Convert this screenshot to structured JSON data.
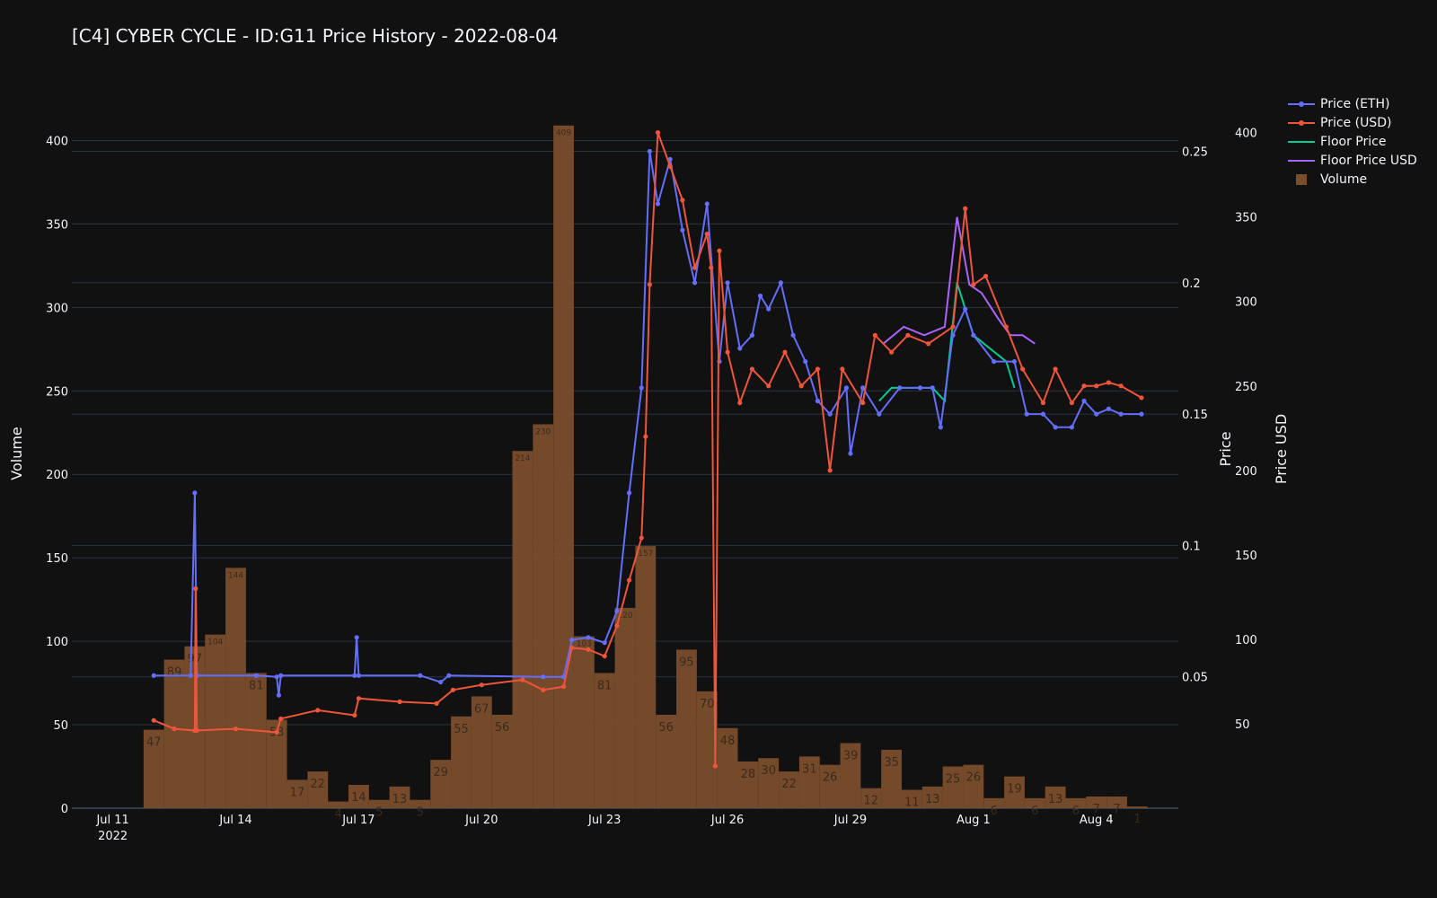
{
  "chart_data": {
    "type": "bar+line",
    "title": "[C4] CYBER CYCLE - ID:G11 Price History - 2022-08-04",
    "axes": {
      "y_left": {
        "label": "Volume",
        "range": [
          0,
          425
        ],
        "ticks": [
          0,
          50,
          100,
          150,
          200,
          250,
          300,
          350,
          400
        ]
      },
      "y_right_price": {
        "label": "Price",
        "range": [
          0,
          0.27
        ],
        "ticks": [
          0.05,
          0.1,
          0.15,
          0.2,
          0.25
        ]
      },
      "y_right_usd": {
        "label": "Price USD",
        "range": [
          0,
          420
        ],
        "ticks": [
          50,
          100,
          150,
          200,
          250,
          300,
          350,
          400
        ]
      },
      "x": {
        "type": "date",
        "range": [
          "2022-07-10",
          "2022-08-06"
        ],
        "tick_labels": [
          "Jul 11\n2022",
          "Jul 14",
          "Jul 17",
          "Jul 20",
          "Jul 23",
          "Jul 26",
          "Jul 29",
          "Aug 1",
          "Aug 4"
        ]
      }
    },
    "grid": true,
    "legend_placement": "top-right",
    "colors": {
      "eth": "#636efa",
      "usd": "#ef553b",
      "floor": "#00cc96",
      "floor_usd": "#ab63fa",
      "volume": "#7a4e2d"
    },
    "legend": [
      "Price (ETH)",
      "Price (USD)",
      "Floor Price",
      "Floor Price USD",
      "Volume"
    ],
    "volume": [
      {
        "x": "2022-07-12",
        "v": 47
      },
      {
        "x": "2022-07-12.5",
        "v": 89
      },
      {
        "x": "2022-07-13",
        "v": 97
      },
      {
        "x": "2022-07-13.5",
        "v": 104
      },
      {
        "x": "2022-07-14",
        "v": 144
      },
      {
        "x": "2022-07-14.5",
        "v": 81
      },
      {
        "x": "2022-07-15",
        "v": 53
      },
      {
        "x": "2022-07-15.5",
        "v": 17
      },
      {
        "x": "2022-07-16",
        "v": 22
      },
      {
        "x": "2022-07-16.5",
        "v": 4
      },
      {
        "x": "2022-07-17",
        "v": 14
      },
      {
        "x": "2022-07-17.5",
        "v": 5
      },
      {
        "x": "2022-07-18",
        "v": 13
      },
      {
        "x": "2022-07-18.5",
        "v": 5
      },
      {
        "x": "2022-07-19",
        "v": 29
      },
      {
        "x": "2022-07-19.5",
        "v": 55
      },
      {
        "x": "2022-07-20",
        "v": 67
      },
      {
        "x": "2022-07-20.5",
        "v": 56
      },
      {
        "x": "2022-07-21",
        "v": 214
      },
      {
        "x": "2022-07-21.5",
        "v": 230
      },
      {
        "x": "2022-07-22",
        "v": 409
      },
      {
        "x": "2022-07-22.5",
        "v": 103
      },
      {
        "x": "2022-07-23",
        "v": 81
      },
      {
        "x": "2022-07-23.5",
        "v": 120
      },
      {
        "x": "2022-07-24",
        "v": 157
      },
      {
        "x": "2022-07-24.5",
        "v": 56
      },
      {
        "x": "2022-07-25",
        "v": 95
      },
      {
        "x": "2022-07-25.5",
        "v": 70
      },
      {
        "x": "2022-07-26",
        "v": 48
      },
      {
        "x": "2022-07-26.5",
        "v": 28
      },
      {
        "x": "2022-07-27",
        "v": 30
      },
      {
        "x": "2022-07-27.5",
        "v": 22
      },
      {
        "x": "2022-07-28",
        "v": 31
      },
      {
        "x": "2022-07-28.5",
        "v": 26
      },
      {
        "x": "2022-07-29",
        "v": 39
      },
      {
        "x": "2022-07-29.5",
        "v": 12
      },
      {
        "x": "2022-07-30",
        "v": 35
      },
      {
        "x": "2022-07-30.5",
        "v": 11
      },
      {
        "x": "2022-07-31",
        "v": 13
      },
      {
        "x": "2022-07-31.5",
        "v": 25
      },
      {
        "x": "2022-08-01",
        "v": 26
      },
      {
        "x": "2022-08-01.5",
        "v": 6
      },
      {
        "x": "2022-08-02",
        "v": 19
      },
      {
        "x": "2022-08-02.5",
        "v": 6
      },
      {
        "x": "2022-08-03",
        "v": 13
      },
      {
        "x": "2022-08-03.5",
        "v": 6
      },
      {
        "x": "2022-08-04",
        "v": 7
      },
      {
        "x": "2022-08-04.5",
        "v": 7
      },
      {
        "x": "2022-08-05",
        "v": 1
      }
    ],
    "price_eth": [
      [
        "2022-07-12",
        0.0505
      ],
      [
        "2022-07-12.9",
        0.0505
      ],
      [
        "2022-07-13.0",
        0.12
      ],
      [
        "2022-07-13.05",
        0.0505
      ],
      [
        "2022-07-14.5",
        0.0505
      ],
      [
        "2022-07-15.0",
        0.05
      ],
      [
        "2022-07-15.05",
        0.043
      ],
      [
        "2022-07-15.1",
        0.0505
      ],
      [
        "2022-07-16.9",
        0.0505
      ],
      [
        "2022-07-16.95",
        0.065
      ],
      [
        "2022-07-17.0",
        0.0505
      ],
      [
        "2022-07-18.5",
        0.0505
      ],
      [
        "2022-07-19.0",
        0.048
      ],
      [
        "2022-07-19.2",
        0.0505
      ],
      [
        "2022-07-21.5",
        0.05
      ],
      [
        "2022-07-22.0",
        0.05
      ],
      [
        "2022-07-22.2",
        0.064
      ],
      [
        "2022-07-22.6",
        0.065
      ],
      [
        "2022-07-23.0",
        0.063
      ],
      [
        "2022-07-23.3",
        0.075
      ],
      [
        "2022-07-23.6",
        0.12
      ],
      [
        "2022-07-23.9",
        0.16
      ],
      [
        "2022-07-24.1",
        0.25
      ],
      [
        "2022-07-24.3",
        0.23
      ],
      [
        "2022-07-24.6",
        0.247
      ],
      [
        "2022-07-24.9",
        0.22
      ],
      [
        "2022-07-25.2",
        0.2
      ],
      [
        "2022-07-25.5",
        0.23
      ],
      [
        "2022-07-25.8",
        0.17
      ],
      [
        "2022-07-26.0",
        0.2
      ],
      [
        "2022-07-26.3",
        0.175
      ],
      [
        "2022-07-26.6",
        0.18
      ],
      [
        "2022-07-26.8",
        0.195
      ],
      [
        "2022-07-27.0",
        0.19
      ],
      [
        "2022-07-27.3",
        0.2
      ],
      [
        "2022-07-27.6",
        0.18
      ],
      [
        "2022-07-27.9",
        0.17
      ],
      [
        "2022-07-28.2",
        0.155
      ],
      [
        "2022-07-28.5",
        0.15
      ],
      [
        "2022-07-28.9",
        0.16
      ],
      [
        "2022-07-29.0",
        0.135
      ],
      [
        "2022-07-29.3",
        0.16
      ],
      [
        "2022-07-29.7",
        0.15
      ],
      [
        "2022-07-30.2",
        0.16
      ],
      [
        "2022-07-30.7",
        0.16
      ],
      [
        "2022-07-31.0",
        0.16
      ],
      [
        "2022-07-31.2",
        0.145
      ],
      [
        "2022-07-31.5",
        0.18
      ],
      [
        "2022-07-31.8",
        0.19
      ],
      [
        "2022-08-01.0",
        0.18
      ],
      [
        "2022-08-01.5",
        0.17
      ],
      [
        "2022-08-02.0",
        0.17
      ],
      [
        "2022-08-02.3",
        0.15
      ],
      [
        "2022-08-02.7",
        0.15
      ],
      [
        "2022-08-03.0",
        0.145
      ],
      [
        "2022-08-03.4",
        0.145
      ],
      [
        "2022-08-03.7",
        0.155
      ],
      [
        "2022-08-04.0",
        0.15
      ],
      [
        "2022-08-04.3",
        0.152
      ],
      [
        "2022-08-04.6",
        0.15
      ],
      [
        "2022-08-05.1",
        0.15
      ]
    ],
    "price_usd": [
      [
        "2022-07-12",
        52
      ],
      [
        "2022-07-12.5",
        47
      ],
      [
        "2022-07-13.0",
        46
      ],
      [
        "2022-07-13.02",
        130
      ],
      [
        "2022-07-13.05",
        46
      ],
      [
        "2022-07-14.0",
        47
      ],
      [
        "2022-07-15.0",
        45
      ],
      [
        "2022-07-15.1",
        53
      ],
      [
        "2022-07-16.0",
        58
      ],
      [
        "2022-07-16.9",
        55
      ],
      [
        "2022-07-17.0",
        65
      ],
      [
        "2022-07-18.0",
        63
      ],
      [
        "2022-07-18.9",
        62
      ],
      [
        "2022-07-19.3",
        70
      ],
      [
        "2022-07-20.0",
        73
      ],
      [
        "2022-07-21.0",
        76
      ],
      [
        "2022-07-21.5",
        70
      ],
      [
        "2022-07-22.0",
        72
      ],
      [
        "2022-07-22.2",
        95
      ],
      [
        "2022-07-22.6",
        94
      ],
      [
        "2022-07-23.0",
        90
      ],
      [
        "2022-07-23.3",
        108
      ],
      [
        "2022-07-23.6",
        135
      ],
      [
        "2022-07-23.9",
        160
      ],
      [
        "2022-07-24.0",
        220
      ],
      [
        "2022-07-24.1",
        310
      ],
      [
        "2022-07-24.3",
        400
      ],
      [
        "2022-07-24.6",
        380
      ],
      [
        "2022-07-24.9",
        360
      ],
      [
        "2022-07-25.2",
        320
      ],
      [
        "2022-07-25.5",
        340
      ],
      [
        "2022-07-25.6",
        320
      ],
      [
        "2022-07-25.7",
        25
      ],
      [
        "2022-07-25.8",
        330
      ],
      [
        "2022-07-26.0",
        270
      ],
      [
        "2022-07-26.3",
        240
      ],
      [
        "2022-07-26.6",
        260
      ],
      [
        "2022-07-27.0",
        250
      ],
      [
        "2022-07-27.4",
        270
      ],
      [
        "2022-07-27.8",
        250
      ],
      [
        "2022-07-28.2",
        260
      ],
      [
        "2022-07-28.5",
        200
      ],
      [
        "2022-07-28.8",
        260
      ],
      [
        "2022-07-29.3",
        240
      ],
      [
        "2022-07-29.6",
        280
      ],
      [
        "2022-07-30.0",
        270
      ],
      [
        "2022-07-30.4",
        280
      ],
      [
        "2022-07-30.9",
        275
      ],
      [
        "2022-07-31.5",
        285
      ],
      [
        "2022-07-31.8",
        355
      ],
      [
        "2022-08-01.0",
        310
      ],
      [
        "2022-08-01.3",
        315
      ],
      [
        "2022-08-01.8",
        285
      ],
      [
        "2022-08-02.2",
        260
      ],
      [
        "2022-08-02.7",
        240
      ],
      [
        "2022-08-03.0",
        260
      ],
      [
        "2022-08-03.4",
        240
      ],
      [
        "2022-08-03.7",
        250
      ],
      [
        "2022-08-04.0",
        250
      ],
      [
        "2022-08-04.3",
        252
      ],
      [
        "2022-08-04.6",
        250
      ],
      [
        "2022-08-05.1",
        243
      ]
    ],
    "floor_price": [
      [
        "2022-07-29.7",
        0.155
      ],
      [
        "2022-07-30.0",
        0.16
      ],
      [
        "2022-07-30.5",
        0.16
      ],
      [
        "2022-07-31.0",
        0.16
      ],
      [
        "2022-07-31.3",
        0.155
      ],
      [
        "2022-07-31.6",
        0.2
      ],
      [
        "2022-07-31.8",
        0.19
      ],
      [
        "2022-08-01.0",
        0.18
      ],
      [
        "2022-08-01.4",
        0.175
      ],
      [
        "2022-08-01.8",
        0.17
      ],
      [
        "2022-08-02.0",
        0.16
      ]
    ],
    "floor_price_usd": [
      [
        "2022-07-29.8",
        275
      ],
      [
        "2022-07-30.3",
        285
      ],
      [
        "2022-07-30.8",
        280
      ],
      [
        "2022-07-31.3",
        285
      ],
      [
        "2022-07-31.6",
        350
      ],
      [
        "2022-07-31.9",
        310
      ],
      [
        "2022-08-01.2",
        305
      ],
      [
        "2022-08-01.6",
        290
      ],
      [
        "2022-08-01.9",
        280
      ],
      [
        "2022-08-02.2",
        280
      ],
      [
        "2022-08-02.5",
        275
      ]
    ]
  }
}
